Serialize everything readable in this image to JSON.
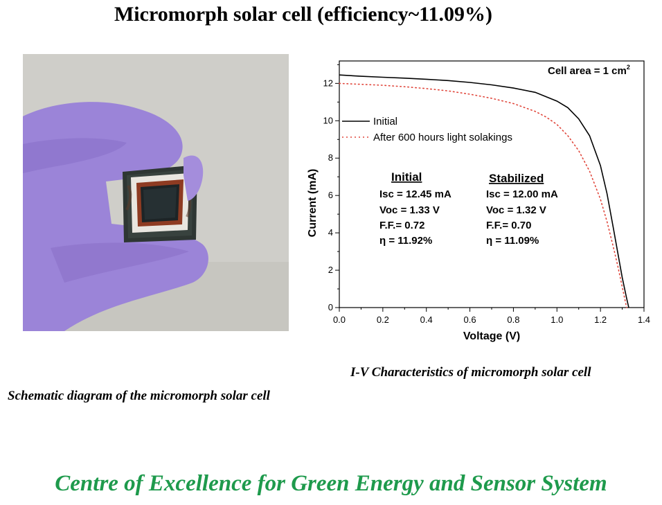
{
  "page": {
    "title": "Micromorph solar cell (efficiency~11.09%)",
    "photo_caption": "Schematic diagram of the micromorph solar cell",
    "chart_caption": "I-V Characteristics of micromorph solar cell",
    "footer": "Centre of Excellence for Green Energy and Sensor System",
    "footer_color": "#1e9a4c"
  },
  "chart_data": {
    "type": "line",
    "xlabel": "Voltage (V)",
    "ylabel": "Current (mA)",
    "xlim": [
      0,
      1.4
    ],
    "ylim": [
      0,
      13.2
    ],
    "xticks": [
      "0.0",
      "0.2",
      "0.4",
      "0.6",
      "0.8",
      "1.0",
      "1.2",
      "1.4"
    ],
    "yticks": [
      "0",
      "2",
      "4",
      "6",
      "8",
      "10",
      "12"
    ],
    "cell_area_label": "Cell area = 1 cm",
    "cell_area_sup": "2",
    "legend_position": "upper-left",
    "series": [
      {
        "name": "Initial",
        "style": "solid",
        "color": "#000000",
        "x": [
          0,
          0.1,
          0.2,
          0.3,
          0.4,
          0.5,
          0.6,
          0.7,
          0.8,
          0.9,
          1.0,
          1.05,
          1.1,
          1.15,
          1.2,
          1.23,
          1.26,
          1.28,
          1.3,
          1.32,
          1.33
        ],
        "y": [
          12.45,
          12.38,
          12.33,
          12.28,
          12.22,
          12.15,
          12.05,
          11.92,
          11.75,
          11.52,
          11.05,
          10.7,
          10.1,
          9.2,
          7.6,
          6.1,
          4.2,
          2.9,
          1.6,
          0.5,
          0
        ]
      },
      {
        "name": "After 600 hours light solakings",
        "style": "dotted",
        "color": "#e0453a",
        "x": [
          0,
          0.1,
          0.2,
          0.3,
          0.4,
          0.5,
          0.6,
          0.7,
          0.8,
          0.9,
          0.95,
          1.0,
          1.05,
          1.1,
          1.15,
          1.2,
          1.23,
          1.26,
          1.28,
          1.3,
          1.32
        ],
        "y": [
          12.0,
          11.95,
          11.9,
          11.82,
          11.72,
          11.6,
          11.42,
          11.2,
          10.92,
          10.5,
          10.2,
          9.8,
          9.2,
          8.4,
          7.3,
          5.8,
          4.6,
          3.2,
          2.2,
          1.1,
          0
        ]
      }
    ],
    "annotations": [
      {
        "heading": "Initial",
        "lines": [
          "Isc = 12.45 mA",
          "Voc = 1.33 V",
          "F.F.= 0.72",
          "η = 11.92%"
        ]
      },
      {
        "heading": "Stabilized",
        "lines": [
          "Isc = 12.00 mA",
          "Voc = 1.32 V",
          "F.F.= 0.70",
          "η = 11.09%"
        ]
      }
    ]
  }
}
